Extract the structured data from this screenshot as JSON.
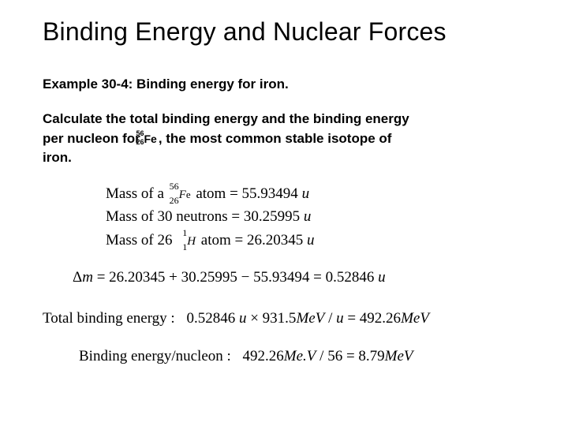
{
  "title": "Binding Energy and Nuclear Forces",
  "example_label": "Example 30-4: Binding energy for iron.",
  "body": {
    "line1": "Calculate the total binding energy and the binding energy",
    "line2a": "per nucleon for ",
    "iso_sup": "56",
    "iso_sub": "26",
    "iso_sym": "Fe",
    "line2b": ",    the most common stable isotope of",
    "line3": "iron."
  },
  "eq": {
    "l1a": "Mass of a ",
    "l1_sup": "56",
    "l1_sub": "26",
    "l1_sym": "F",
    "l1_sym2": "e",
    "l1b": " atom = 55.93494 ",
    "l1u": "u",
    "l2": "Mass of 30 neutrons = 30.25995 ",
    "l2u": "u",
    "l3a": "Mass of 26 ",
    "l3_sup": "1",
    "l3_sub": "1",
    "l3_sym": "H",
    "l3b": "  atom = 26.20345 ",
    "l3u": "u"
  },
  "delta": {
    "dm": "Δ",
    "m": "m",
    "eq": " = 26.20345 + 30.25995 − 55.93494 = 0.52846 ",
    "u": "u"
  },
  "total": {
    "label": "Total binding energy :",
    "val": "  0.52846 ",
    "u1": "u",
    "mul": " × 931.5",
    "mev": "MeV",
    "per": " / ",
    "u2": "u",
    "eq": " = 492.26",
    "mev2": "MeV"
  },
  "pernuc": {
    "label": "Binding energy/nucleon :",
    "val": "  492.26",
    "mev": "Me.V",
    "div": " / 56 = 8.79",
    "mev2": "MeV"
  }
}
